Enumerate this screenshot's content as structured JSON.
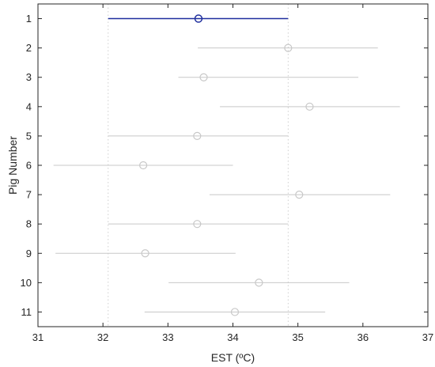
{
  "chart_data": {
    "type": "scatter",
    "xlabel": "EST (ºC)",
    "ylabel": "Pig Number",
    "xlim": [
      31,
      37
    ],
    "ylim": [
      0.5,
      11.5
    ],
    "x_ticks": [
      31,
      32,
      33,
      34,
      35,
      36,
      37
    ],
    "y_ticks": [
      1,
      2,
      3,
      4,
      5,
      6,
      7,
      8,
      9,
      10,
      11
    ],
    "y_reversed": true,
    "reference_lines": [
      32.08,
      34.85
    ],
    "highlight_color": "#1f2f9e",
    "muted_color": "#c8c8c8",
    "points": [
      {
        "pig": 1,
        "mean": 33.47,
        "low": 32.08,
        "high": 34.85,
        "highlighted": true
      },
      {
        "pig": 2,
        "mean": 34.85,
        "low": 33.46,
        "high": 36.23,
        "highlighted": false
      },
      {
        "pig": 3,
        "mean": 33.55,
        "low": 33.16,
        "high": 35.93,
        "highlighted": false
      },
      {
        "pig": 4,
        "mean": 35.18,
        "low": 33.8,
        "high": 36.57,
        "highlighted": false
      },
      {
        "pig": 5,
        "mean": 33.45,
        "low": 32.08,
        "high": 34.85,
        "highlighted": false
      },
      {
        "pig": 6,
        "mean": 32.62,
        "low": 31.24,
        "high": 34.0,
        "highlighted": false
      },
      {
        "pig": 7,
        "mean": 35.02,
        "low": 33.64,
        "high": 36.42,
        "highlighted": false
      },
      {
        "pig": 8,
        "mean": 33.45,
        "low": 32.08,
        "high": 34.85,
        "highlighted": false
      },
      {
        "pig": 9,
        "mean": 32.65,
        "low": 31.27,
        "high": 34.04,
        "highlighted": false
      },
      {
        "pig": 10,
        "mean": 34.4,
        "low": 33.01,
        "high": 35.79,
        "highlighted": false
      },
      {
        "pig": 11,
        "mean": 34.03,
        "low": 32.64,
        "high": 35.42,
        "highlighted": false
      }
    ]
  }
}
